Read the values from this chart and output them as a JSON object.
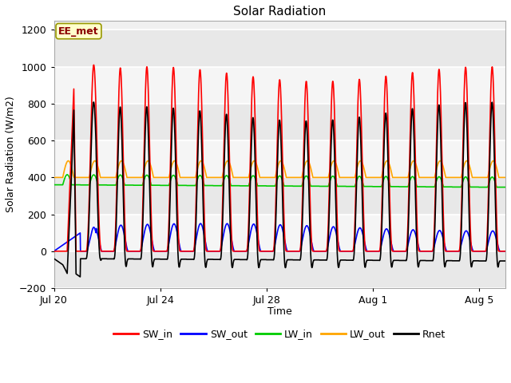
{
  "title": "Solar Radiation",
  "xlabel": "Time",
  "ylabel": "Solar Radiation (W/m2)",
  "ylim": [
    -200,
    1250
  ],
  "yticks": [
    -200,
    0,
    200,
    400,
    600,
    800,
    1000,
    1200
  ],
  "station_label": "EE_met",
  "legend": [
    "SW_in",
    "SW_out",
    "LW_in",
    "LW_out",
    "Rnet"
  ],
  "colors": {
    "SW_in": "#ff0000",
    "SW_out": "#0000ff",
    "LW_in": "#00cc00",
    "LW_out": "#ffa500",
    "Rnet": "#000000"
  },
  "xtick_labels": [
    "Jul 20",
    "Jul 24",
    "Jul 28",
    "Aug 1",
    "Aug 5"
  ],
  "xtick_positions": [
    0,
    4,
    8,
    12,
    16
  ],
  "background_color": "#ffffff",
  "plot_bg_light": "#f0f0f0",
  "plot_bg_dark": "#e0e0e0",
  "grid_color": "#ffffff",
  "n_days": 17,
  "dt_hours": 0.25
}
